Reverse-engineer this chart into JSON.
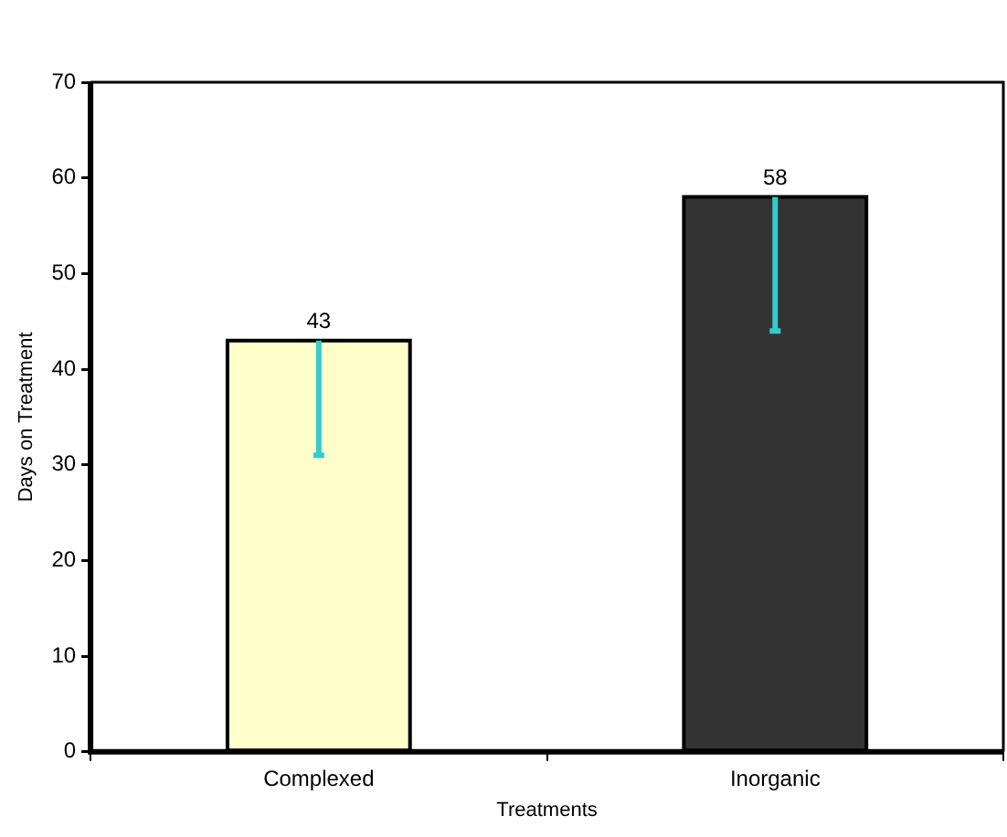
{
  "chart_data": {
    "type": "bar",
    "xlabel": "Treatments",
    "ylabel": "Days on Treatment",
    "categories": [
      "Complexed",
      "Inorganic"
    ],
    "values": [
      43,
      58
    ],
    "colors": [
      "#ffffcc",
      "#333333"
    ],
    "errors": [
      [
        31,
        43
      ],
      [
        44,
        58
      ]
    ],
    "data_labels": true,
    "ylim": [
      0,
      70
    ],
    "yticks": [
      0,
      10,
      20,
      30,
      40,
      50,
      60,
      70
    ],
    "grid": false,
    "legend": false
  }
}
